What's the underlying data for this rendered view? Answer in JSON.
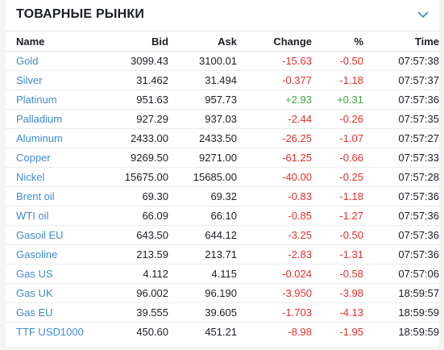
{
  "widget": {
    "title": "ТОВАРНЫЕ РЫНКИ",
    "collapse_icon": "chevron-down-icon"
  },
  "colors": {
    "link": "#3f8bcb",
    "negative": "#e0312c",
    "positive": "#3aa838",
    "text": "#1b1e25"
  },
  "table": {
    "columns": [
      "Name",
      "Bid",
      "Ask",
      "Change",
      "%",
      "Time"
    ],
    "rows": [
      {
        "name": "Gold",
        "bid": "3099.43",
        "ask": "3100.01",
        "change": "-15.63",
        "pct": "-0.50",
        "time": "07:57:38",
        "trend": "neg"
      },
      {
        "name": "Silver",
        "bid": "31.462",
        "ask": "31.494",
        "change": "-0.377",
        "pct": "-1.18",
        "time": "07:57:37",
        "trend": "neg"
      },
      {
        "name": "Platinum",
        "bid": "951.63",
        "ask": "957.73",
        "change": "+2.93",
        "pct": "+0.31",
        "time": "07:57:36",
        "trend": "pos"
      },
      {
        "name": "Palladium",
        "bid": "927.29",
        "ask": "937.03",
        "change": "-2.44",
        "pct": "-0.26",
        "time": "07:57:35",
        "trend": "neg"
      },
      {
        "name": "Aluminum",
        "bid": "2433.00",
        "ask": "2433.50",
        "change": "-26.25",
        "pct": "-1.07",
        "time": "07:57:27",
        "trend": "neg"
      },
      {
        "name": "Copper",
        "bid": "9269.50",
        "ask": "9271.00",
        "change": "-61.25",
        "pct": "-0.66",
        "time": "07:57:33",
        "trend": "neg"
      },
      {
        "name": "Nickel",
        "bid": "15675.00",
        "ask": "15685.00",
        "change": "-40.00",
        "pct": "-0.25",
        "time": "07:57:28",
        "trend": "neg"
      },
      {
        "name": "Brent oil",
        "bid": "69.30",
        "ask": "69.32",
        "change": "-0.83",
        "pct": "-1.18",
        "time": "07:57:36",
        "trend": "neg"
      },
      {
        "name": "WTI oil",
        "bid": "66.09",
        "ask": "66.10",
        "change": "-0.85",
        "pct": "-1.27",
        "time": "07:57:36",
        "trend": "neg"
      },
      {
        "name": "Gasoil EU",
        "bid": "643.50",
        "ask": "644.12",
        "change": "-3.25",
        "pct": "-0.50",
        "time": "07:57:36",
        "trend": "neg"
      },
      {
        "name": "Gasoline",
        "bid": "213.59",
        "ask": "213.71",
        "change": "-2.83",
        "pct": "-1.31",
        "time": "07:57:36",
        "trend": "neg"
      },
      {
        "name": "Gas US",
        "bid": "4.112",
        "ask": "4.115",
        "change": "-0.024",
        "pct": "-0.58",
        "time": "07:57:06",
        "trend": "neg"
      },
      {
        "name": "Gas UK",
        "bid": "96.002",
        "ask": "96.190",
        "change": "-3.950",
        "pct": "-3.98",
        "time": "18:59:57",
        "trend": "neg"
      },
      {
        "name": "Gas EU",
        "bid": "39.555",
        "ask": "39.605",
        "change": "-1.703",
        "pct": "-4.13",
        "time": "18:59:59",
        "trend": "neg"
      },
      {
        "name": "TTF USD1000",
        "bid": "450.60",
        "ask": "451.21",
        "change": "-8.98",
        "pct": "-1.95",
        "time": "18:59:59",
        "trend": "neg"
      }
    ]
  }
}
